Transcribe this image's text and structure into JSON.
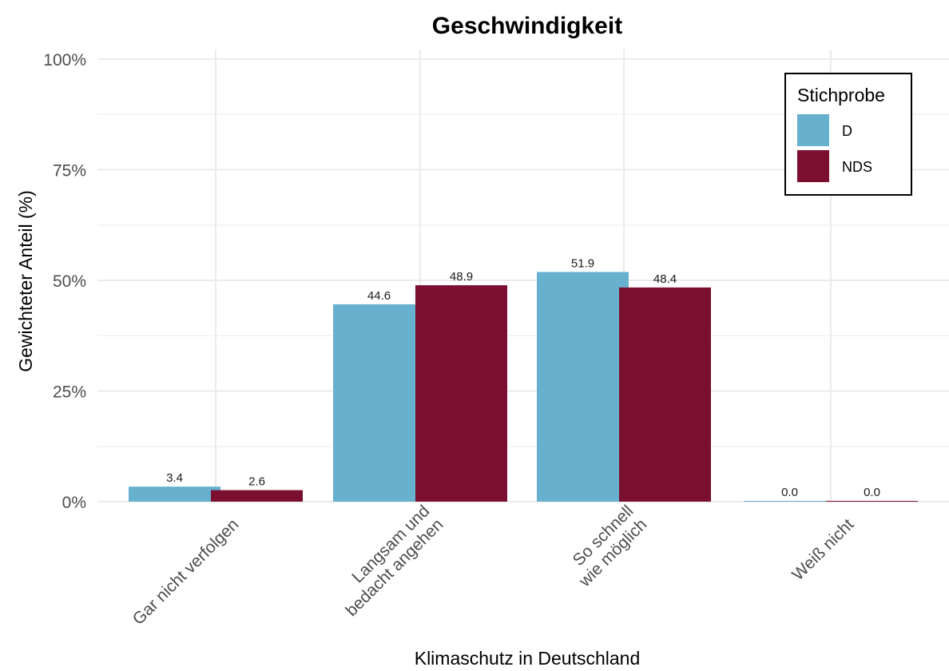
{
  "chart_data": {
    "type": "bar",
    "title": "Geschwindigkeit",
    "xlabel": "Klimaschutz in Deutschland",
    "ylabel": "Gewichteter Anteil (%)",
    "ylim": [
      0,
      100
    ],
    "yticks": [
      0,
      25,
      50,
      75,
      100
    ],
    "ytick_labels": [
      "0%",
      "25%",
      "50%",
      "75%",
      "100%"
    ],
    "categories": [
      [
        "Gar nicht verfolgen"
      ],
      [
        "Langsam und",
        "bedacht angehen"
      ],
      [
        "So schnell",
        "wie möglich"
      ],
      [
        "Weiß nicht"
      ]
    ],
    "series": [
      {
        "name": "D",
        "color": "#67b1cf",
        "values": [
          3.4,
          44.6,
          51.9,
          0.0
        ],
        "labels": [
          "3.4",
          "44.6",
          "51.9",
          "0.0"
        ]
      },
      {
        "name": "NDS",
        "color": "#7b0f30",
        "values": [
          2.6,
          48.9,
          48.4,
          0.0
        ],
        "labels": [
          "2.6",
          "48.9",
          "48.4",
          "0.0"
        ]
      }
    ],
    "legend": {
      "title": "Stichprobe",
      "position": "top-right"
    },
    "grid": true
  }
}
